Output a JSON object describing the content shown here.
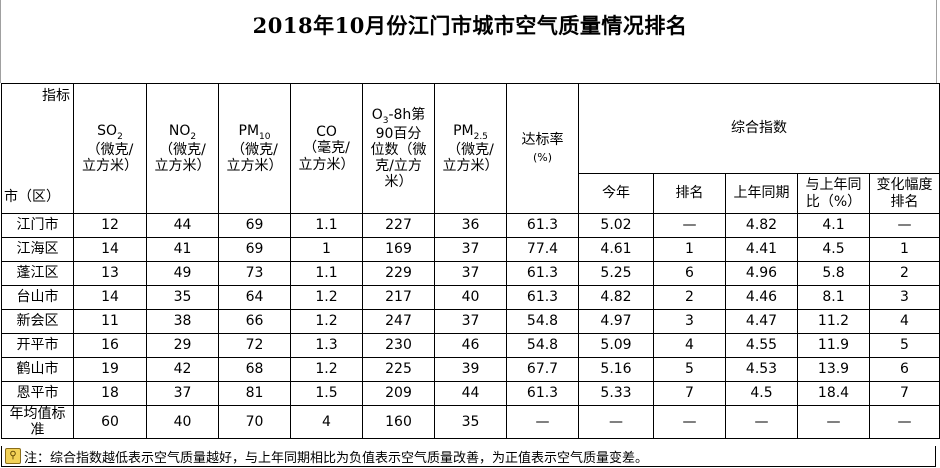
{
  "title": "2018年10月份江门市城市空气质量情况排名",
  "corner": {
    "indicator": "指标",
    "region": "市（区）"
  },
  "headers": {
    "so2": {
      "name": "SO",
      "sub": "2",
      "unit": "（微克/\n立方米）"
    },
    "no2": {
      "name": "NO",
      "sub": "2",
      "unit": "（微克/\n立方米）"
    },
    "pm10": {
      "name": "PM",
      "sub": "10",
      "unit": "（微克/\n立方米）"
    },
    "co": {
      "name": "CO",
      "unit": "（毫克/\n立方米）"
    },
    "o3": {
      "name": "O",
      "sub": "3",
      "rest": "-8h第\n90百分\n位数（微\n克/立方\n米）"
    },
    "pm25": {
      "name": "PM",
      "sub": "2.5",
      "unit": "（微克/\n立方米）"
    },
    "rate": {
      "name": "达标率",
      "unit": "(%)"
    },
    "composite": "综合指数",
    "composite_sub": [
      "今年",
      "排名",
      "上年同期",
      "与上年同\n比（%）",
      "变化幅度\n排名"
    ]
  },
  "rows": [
    [
      "江门市",
      "12",
      "44",
      "69",
      "1.1",
      "227",
      "36",
      "61.3",
      "5.02",
      "—",
      "4.82",
      "4.1",
      "—"
    ],
    [
      "江海区",
      "14",
      "41",
      "69",
      "1",
      "169",
      "37",
      "77.4",
      "4.61",
      "1",
      "4.41",
      "4.5",
      "1"
    ],
    [
      "蓬江区",
      "13",
      "49",
      "73",
      "1.1",
      "229",
      "37",
      "61.3",
      "5.25",
      "6",
      "4.96",
      "5.8",
      "2"
    ],
    [
      "台山市",
      "14",
      "35",
      "64",
      "1.2",
      "217",
      "40",
      "61.3",
      "4.82",
      "2",
      "4.46",
      "8.1",
      "3"
    ],
    [
      "新会区",
      "11",
      "38",
      "66",
      "1.2",
      "247",
      "37",
      "54.8",
      "4.97",
      "3",
      "4.47",
      "11.2",
      "4"
    ],
    [
      "开平市",
      "16",
      "29",
      "72",
      "1.3",
      "230",
      "46",
      "54.8",
      "5.09",
      "4",
      "4.55",
      "11.9",
      "5"
    ],
    [
      "鹤山市",
      "19",
      "42",
      "68",
      "1.2",
      "225",
      "39",
      "67.7",
      "5.16",
      "5",
      "4.53",
      "13.9",
      "6"
    ],
    [
      "恩平市",
      "18",
      "37",
      "81",
      "1.5",
      "209",
      "44",
      "61.3",
      "5.33",
      "7",
      "4.5",
      "18.4",
      "7"
    ]
  ],
  "standard": [
    "年均值标\n准",
    "60",
    "40",
    "70",
    "4",
    "160",
    "35",
    "—",
    "—",
    "—",
    "—",
    "—",
    "—"
  ],
  "note": "注：综合指数越低表示空气质量越好，与上年同期相比为负值表示空气质量改善，为正值表示空气质量变差。"
}
